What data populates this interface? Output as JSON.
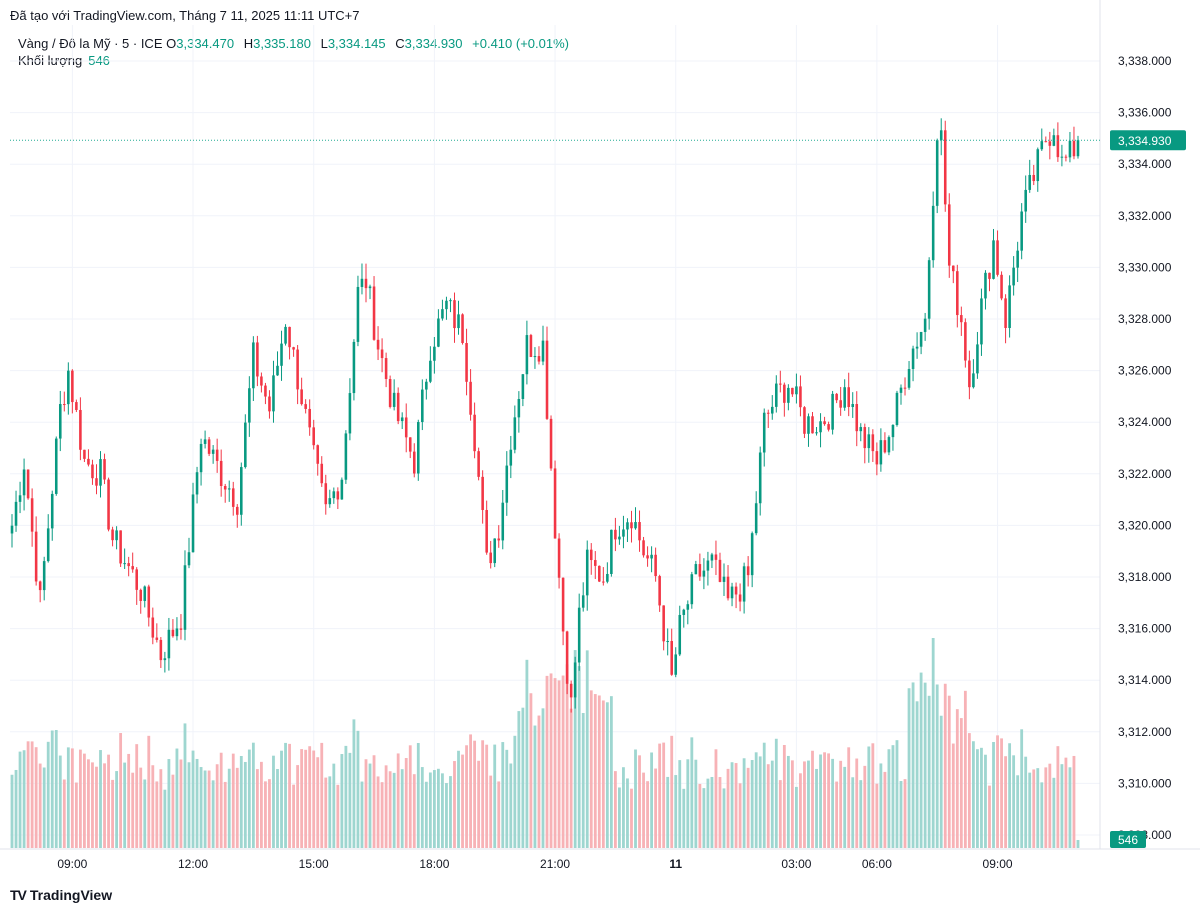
{
  "header": {
    "caption": "Đã tạo với TradingView.com, Tháng 7 11, 2025 11:11 UTC+7",
    "symbol": "Vàng / Đô la Mỹ · 5 · ICE",
    "open_label": "O",
    "open": "3,334.470",
    "high_label": "H",
    "high": "3,335.180",
    "low_label": "L",
    "low": "3,334.145",
    "close_label": "C",
    "close": "3,334.930",
    "change": "+0.410 (+0.01%)",
    "volume_label": "Khối lượng",
    "volume": "546"
  },
  "colors": {
    "up": "#089981",
    "down": "#f23645",
    "up_volume": "#9ed6d0",
    "down_volume": "#f7b2b6",
    "grid": "#f0f3fa",
    "price_line": "#22ab94"
  },
  "footer": {
    "logo_mark": "TV",
    "logo_text": "TradingView"
  },
  "chart_data": {
    "type": "candlestick",
    "interval": "5m",
    "ylim": [
      3306.5,
      3338.8
    ],
    "y_ticks": [
      "3,338.000",
      "3,336.000",
      "3,334.000",
      "3,332.000",
      "3,330.000",
      "3,328.000",
      "3,326.000",
      "3,324.000",
      "3,322.000",
      "3,320.000",
      "3,318.000",
      "3,316.000",
      "3,314.000",
      "3,312.000",
      "3,310.000",
      "3,308.000"
    ],
    "y_tick_values": [
      3338,
      3336,
      3334,
      3332,
      3330,
      3328,
      3326,
      3324,
      3322,
      3320,
      3318,
      3316,
      3314,
      3312,
      3310,
      3308
    ],
    "x_ticks": [
      {
        "label": "09:00",
        "index": 15,
        "bold": false
      },
      {
        "label": "12:00",
        "index": 45,
        "bold": false
      },
      {
        "label": "15:00",
        "index": 75,
        "bold": false
      },
      {
        "label": "18:00",
        "index": 105,
        "bold": false
      },
      {
        "label": "21:00",
        "index": 135,
        "bold": false
      },
      {
        "label": "11",
        "index": 165,
        "bold": true
      },
      {
        "label": "03:00",
        "index": 195,
        "bold": false
      },
      {
        "label": "06:00",
        "index": 215,
        "bold": false
      },
      {
        "label": "09:00",
        "index": 245,
        "bold": false
      }
    ],
    "last_price": "3,334.930",
    "last_price_value": 3334.93,
    "last_volume": "546",
    "anchors": [
      [
        0,
        3320.0
      ],
      [
        3,
        3322.5
      ],
      [
        7,
        3317.0
      ],
      [
        12,
        3324.5
      ],
      [
        14,
        3326.0
      ],
      [
        18,
        3322.5
      ],
      [
        22,
        3322.0
      ],
      [
        25,
        3319.5
      ],
      [
        32,
        3317.5
      ],
      [
        37,
        3315.0
      ],
      [
        42,
        3316.5
      ],
      [
        47,
        3323.5
      ],
      [
        52,
        3322.0
      ],
      [
        56,
        3321.0
      ],
      [
        60,
        3326.5
      ],
      [
        64,
        3324.5
      ],
      [
        68,
        3328.0
      ],
      [
        72,
        3325.0
      ],
      [
        75,
        3322.5
      ],
      [
        78,
        3320.5
      ],
      [
        82,
        3322.0
      ],
      [
        86,
        3329.0
      ],
      [
        88,
        3329.5
      ],
      [
        91,
        3327.0
      ],
      [
        95,
        3324.5
      ],
      [
        100,
        3322.5
      ],
      [
        104,
        3327.0
      ],
      [
        108,
        3328.5
      ],
      [
        112,
        3327.5
      ],
      [
        115,
        3323.5
      ],
      [
        118,
        3318.5
      ],
      [
        121,
        3320.0
      ],
      [
        124,
        3323.5
      ],
      [
        128,
        3327.0
      ],
      [
        132,
        3327.0
      ],
      [
        135,
        3320.0
      ],
      [
        137,
        3316.0
      ],
      [
        139,
        3313.0
      ],
      [
        141,
        3316.5
      ],
      [
        143,
        3318.5
      ],
      [
        147,
        3318.0
      ],
      [
        150,
        3320.0
      ],
      [
        154,
        3320.5
      ],
      [
        157,
        3319.0
      ],
      [
        160,
        3318.0
      ],
      [
        162,
        3316.0
      ],
      [
        164,
        3314.0
      ],
      [
        166,
        3316.0
      ],
      [
        170,
        3318.0
      ],
      [
        174,
        3318.5
      ],
      [
        178,
        3317.0
      ],
      [
        183,
        3318.0
      ],
      [
        187,
        3324.0
      ],
      [
        190,
        3325.0
      ],
      [
        193,
        3325.5
      ],
      [
        197,
        3324.0
      ],
      [
        201,
        3324.0
      ],
      [
        204,
        3324.5
      ],
      [
        207,
        3325.5
      ],
      [
        211,
        3323.5
      ],
      [
        215,
        3322.5
      ],
      [
        219,
        3324.0
      ],
      [
        223,
        3326.5
      ],
      [
        227,
        3328.0
      ],
      [
        229,
        3333.0
      ],
      [
        230,
        3335.5
      ],
      [
        231,
        3335.0
      ],
      [
        233,
        3330.0
      ],
      [
        236,
        3328.0
      ],
      [
        238,
        3325.5
      ],
      [
        241,
        3328.5
      ],
      [
        244,
        3331.0
      ],
      [
        247,
        3328.0
      ],
      [
        249,
        3330.0
      ],
      [
        251,
        3332.0
      ],
      [
        254,
        3333.5
      ],
      [
        257,
        3335.0
      ],
      [
        259,
        3335.5
      ],
      [
        261,
        3334.0
      ],
      [
        263,
        3334.3
      ],
      [
        265,
        3334.9
      ]
    ],
    "candle_count": 266
  }
}
